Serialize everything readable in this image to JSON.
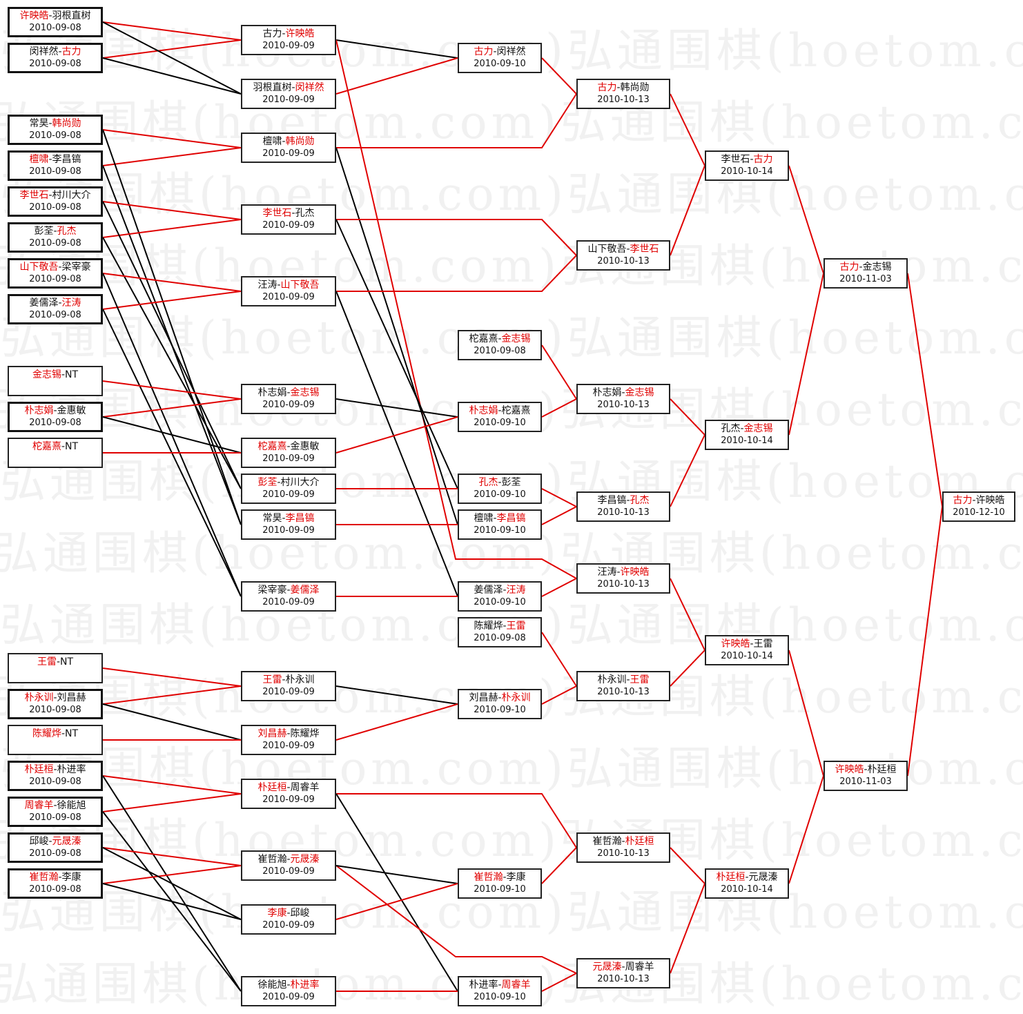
{
  "watermark": "弘通围棋(hoetom.com)弘通围棋(hoetom.com)弘通围棋",
  "colors": {
    "winner": "#e00000",
    "loser": "#000000",
    "border": "#222222"
  },
  "matches": [
    {
      "id": "c1a",
      "players": [
        "许映皓",
        "羽根直树"
      ],
      "winner": 0,
      "date": "2010-09-08"
    },
    {
      "id": "c1b",
      "players": [
        "闵祥然",
        "古力"
      ],
      "winner": 1,
      "date": "2010-09-08"
    },
    {
      "id": "c1c",
      "players": [
        "常昊",
        "韩尚勋"
      ],
      "winner": 1,
      "date": "2010-09-08"
    },
    {
      "id": "c1d",
      "players": [
        "檀啸",
        "李昌镐"
      ],
      "winner": 0,
      "date": "2010-09-08"
    },
    {
      "id": "c1e",
      "players": [
        "李世石",
        "村川大介"
      ],
      "winner": 0,
      "date": "2010-09-08"
    },
    {
      "id": "c1f",
      "players": [
        "彭荃",
        "孔杰"
      ],
      "winner": 1,
      "date": "2010-09-08"
    },
    {
      "id": "c1g",
      "players": [
        "山下敬吾",
        "梁宰豪"
      ],
      "winner": 0,
      "date": "2010-09-08"
    },
    {
      "id": "c1h",
      "players": [
        "姜儒泽",
        "汪涛"
      ],
      "winner": 1,
      "date": "2010-09-08"
    },
    {
      "id": "c1i",
      "players": [
        "金志锡",
        "NT"
      ],
      "winner": 0,
      "date": ""
    },
    {
      "id": "c1j",
      "players": [
        "朴志娟",
        "金惠敏"
      ],
      "winner": 0,
      "date": "2010-09-08"
    },
    {
      "id": "c1k",
      "players": [
        "柁嘉熹",
        "NT"
      ],
      "winner": 0,
      "date": ""
    },
    {
      "id": "c1l",
      "players": [
        "王雷",
        "NT"
      ],
      "winner": 0,
      "date": ""
    },
    {
      "id": "c1m",
      "players": [
        "朴永训",
        "刘昌赫"
      ],
      "winner": 0,
      "date": "2010-09-08"
    },
    {
      "id": "c1n",
      "players": [
        "陈耀烨",
        "NT"
      ],
      "winner": 0,
      "date": ""
    },
    {
      "id": "c1o",
      "players": [
        "朴廷桓",
        "朴进率"
      ],
      "winner": 0,
      "date": "2010-09-08"
    },
    {
      "id": "c1p",
      "players": [
        "周睿羊",
        "徐能旭"
      ],
      "winner": 0,
      "date": "2010-09-08"
    },
    {
      "id": "c1q",
      "players": [
        "邱峻",
        "元晟溱"
      ],
      "winner": 1,
      "date": "2010-09-08"
    },
    {
      "id": "c1r",
      "players": [
        "崔哲瀚",
        "李康"
      ],
      "winner": 0,
      "date": "2010-09-08"
    },
    {
      "id": "c2a",
      "players": [
        "古力",
        "许映皓"
      ],
      "winner": 1,
      "date": "2010-09-09"
    },
    {
      "id": "c2b",
      "players": [
        "羽根直树",
        "闵祥然"
      ],
      "winner": 1,
      "date": "2010-09-09"
    },
    {
      "id": "c2c",
      "players": [
        "檀啸",
        "韩尚勋"
      ],
      "winner": 1,
      "date": "2010-09-09"
    },
    {
      "id": "c2d",
      "players": [
        "李世石",
        "孔杰"
      ],
      "winner": 0,
      "date": "2010-09-09"
    },
    {
      "id": "c2e",
      "players": [
        "汪涛",
        "山下敬吾"
      ],
      "winner": 1,
      "date": "2010-09-09"
    },
    {
      "id": "c2f",
      "players": [
        "朴志娟",
        "金志锡"
      ],
      "winner": 1,
      "date": "2010-09-09"
    },
    {
      "id": "c2g",
      "players": [
        "柁嘉熹",
        "金惠敏"
      ],
      "winner": 0,
      "date": "2010-09-09"
    },
    {
      "id": "c2h",
      "players": [
        "彭荃",
        "村川大介"
      ],
      "winner": 0,
      "date": "2010-09-09"
    },
    {
      "id": "c2i",
      "players": [
        "常昊",
        "李昌镐"
      ],
      "winner": 1,
      "date": "2010-09-09"
    },
    {
      "id": "c2j",
      "players": [
        "梁宰豪",
        "姜儒泽"
      ],
      "winner": 1,
      "date": "2010-09-09"
    },
    {
      "id": "c2k",
      "players": [
        "王雷",
        "朴永训"
      ],
      "winner": 0,
      "date": "2010-09-09"
    },
    {
      "id": "c2l",
      "players": [
        "刘昌赫",
        "陈耀烨"
      ],
      "winner": 0,
      "date": "2010-09-09"
    },
    {
      "id": "c2m",
      "players": [
        "朴廷桓",
        "周睿羊"
      ],
      "winner": 0,
      "date": "2010-09-09"
    },
    {
      "id": "c2n",
      "players": [
        "崔哲瀚",
        "元晟溱"
      ],
      "winner": 1,
      "date": "2010-09-09"
    },
    {
      "id": "c2o",
      "players": [
        "李康",
        "邱峻"
      ],
      "winner": 0,
      "date": "2010-09-09"
    },
    {
      "id": "c2p",
      "players": [
        "徐能旭",
        "朴进率"
      ],
      "winner": 1,
      "date": "2010-09-09"
    },
    {
      "id": "c3a",
      "players": [
        "古力",
        "闵祥然"
      ],
      "winner": 0,
      "date": "2010-09-10"
    },
    {
      "id": "c3b",
      "players": [
        "柁嘉熹",
        "金志锡"
      ],
      "winner": 1,
      "date": "2010-09-08"
    },
    {
      "id": "c3c",
      "players": [
        "朴志娟",
        "柁嘉熹"
      ],
      "winner": 0,
      "date": "2010-09-10"
    },
    {
      "id": "c3d",
      "players": [
        "孔杰",
        "彭荃"
      ],
      "winner": 0,
      "date": "2010-09-10"
    },
    {
      "id": "c3e",
      "players": [
        "檀啸",
        "李昌镐"
      ],
      "winner": 1,
      "date": "2010-09-10"
    },
    {
      "id": "c3f",
      "players": [
        "姜儒泽",
        "汪涛"
      ],
      "winner": 1,
      "date": "2010-09-10"
    },
    {
      "id": "c3g",
      "players": [
        "陈耀烨",
        "王雷"
      ],
      "winner": 1,
      "date": "2010-09-08"
    },
    {
      "id": "c3h",
      "players": [
        "刘昌赫",
        "朴永训"
      ],
      "winner": 1,
      "date": "2010-09-10"
    },
    {
      "id": "c3i",
      "players": [
        "崔哲瀚",
        "李康"
      ],
      "winner": 0,
      "date": "2010-09-10"
    },
    {
      "id": "c3j",
      "players": [
        "朴进率",
        "周睿羊"
      ],
      "winner": 1,
      "date": "2010-09-10"
    },
    {
      "id": "c4a",
      "players": [
        "古力",
        "韩尚勋"
      ],
      "winner": 0,
      "date": "2010-10-13"
    },
    {
      "id": "c4b",
      "players": [
        "山下敬吾",
        "李世石"
      ],
      "winner": 1,
      "date": "2010-10-13"
    },
    {
      "id": "c4c",
      "players": [
        "朴志娟",
        "金志锡"
      ],
      "winner": 1,
      "date": "2010-10-13"
    },
    {
      "id": "c4d",
      "players": [
        "李昌镐",
        "孔杰"
      ],
      "winner": 1,
      "date": "2010-10-13"
    },
    {
      "id": "c4e",
      "players": [
        "汪涛",
        "许映皓"
      ],
      "winner": 1,
      "date": "2010-10-13"
    },
    {
      "id": "c4f",
      "players": [
        "朴永训",
        "王雷"
      ],
      "winner": 1,
      "date": "2010-10-13"
    },
    {
      "id": "c4g",
      "players": [
        "崔哲瀚",
        "朴廷桓"
      ],
      "winner": 1,
      "date": "2010-10-13"
    },
    {
      "id": "c4h",
      "players": [
        "元晟溱",
        "周睿羊"
      ],
      "winner": 0,
      "date": "2010-10-13"
    },
    {
      "id": "c5a",
      "players": [
        "李世石",
        "古力"
      ],
      "winner": 1,
      "date": "2010-10-14"
    },
    {
      "id": "c5b",
      "players": [
        "孔杰",
        "金志锡"
      ],
      "winner": 1,
      "date": "2010-10-14"
    },
    {
      "id": "c5c",
      "players": [
        "许映皓",
        "王雷"
      ],
      "winner": 0,
      "date": "2010-10-14"
    },
    {
      "id": "c5d",
      "players": [
        "朴廷桓",
        "元晟溱"
      ],
      "winner": 0,
      "date": "2010-10-14"
    },
    {
      "id": "c6a",
      "players": [
        "古力",
        "金志锡"
      ],
      "winner": 0,
      "date": "2010-11-03"
    },
    {
      "id": "c6b",
      "players": [
        "许映皓",
        "朴廷桓"
      ],
      "winner": 0,
      "date": "2010-11-03"
    },
    {
      "id": "c7a",
      "players": [
        "古力",
        "许映皓"
      ],
      "winner": 0,
      "date": "2010-12-10"
    }
  ],
  "connections": [
    [
      "c1a",
      "c2a",
      "w"
    ],
    [
      "c1b",
      "c2a",
      "w"
    ],
    [
      "c1a",
      "c2b",
      "l"
    ],
    [
      "c1b",
      "c2b",
      "l"
    ],
    [
      "c1c",
      "c2c",
      "w"
    ],
    [
      "c1d",
      "c2c",
      "w"
    ],
    [
      "c1c",
      "c2i",
      "l"
    ],
    [
      "c1d",
      "c2i",
      "l"
    ],
    [
      "c1e",
      "c2d",
      "w"
    ],
    [
      "c1f",
      "c2d",
      "w"
    ],
    [
      "c1e",
      "c2h",
      "l"
    ],
    [
      "c1f",
      "c2h",
      "l"
    ],
    [
      "c1g",
      "c2e",
      "w"
    ],
    [
      "c1h",
      "c2e",
      "w"
    ],
    [
      "c1g",
      "c2j",
      "l"
    ],
    [
      "c1h",
      "c2j",
      "l"
    ],
    [
      "c1i",
      "c2f",
      "w"
    ],
    [
      "c1j",
      "c2f",
      "w"
    ],
    [
      "c1j",
      "c2g",
      "l"
    ],
    [
      "c1k",
      "c2g",
      "w"
    ],
    [
      "c1l",
      "c2k",
      "w"
    ],
    [
      "c1m",
      "c2k",
      "w"
    ],
    [
      "c1m",
      "c2l",
      "l"
    ],
    [
      "c1n",
      "c2l",
      "w"
    ],
    [
      "c1o",
      "c2m",
      "w"
    ],
    [
      "c1p",
      "c2m",
      "w"
    ],
    [
      "c1o",
      "c2p",
      "l"
    ],
    [
      "c1p",
      "c2p",
      "l"
    ],
    [
      "c1q",
      "c2n",
      "w"
    ],
    [
      "c1r",
      "c2n",
      "w"
    ],
    [
      "c1q",
      "c2o",
      "l"
    ],
    [
      "c1r",
      "c2o",
      "l"
    ],
    [
      "c2a",
      "c3a",
      "l"
    ],
    [
      "c2b",
      "c3a",
      "w"
    ],
    [
      "c2a",
      "c4e",
      "w"
    ],
    [
      "c2c",
      "c4a",
      "w"
    ],
    [
      "c2c",
      "c3e",
      "l"
    ],
    [
      "c2d",
      "c4b",
      "w"
    ],
    [
      "c2d",
      "c3d",
      "l"
    ],
    [
      "c2e",
      "c4b",
      "w"
    ],
    [
      "c2e",
      "c3f",
      "l"
    ],
    [
      "c2f",
      "c3c",
      "l"
    ],
    [
      "c2g",
      "c3c",
      "w"
    ],
    [
      "c2h",
      "c3d",
      "w"
    ],
    [
      "c2i",
      "c3e",
      "w"
    ],
    [
      "c2j",
      "c3f",
      "w"
    ],
    [
      "c2k",
      "c3h",
      "l"
    ],
    [
      "c2l",
      "c3h",
      "w"
    ],
    [
      "c2m",
      "c4g",
      "w"
    ],
    [
      "c2m",
      "c3j",
      "l"
    ],
    [
      "c2n",
      "c4h",
      "w"
    ],
    [
      "c2n",
      "c3i",
      "l"
    ],
    [
      "c2o",
      "c3i",
      "w"
    ],
    [
      "c2p",
      "c3j",
      "w"
    ],
    [
      "c3a",
      "c4a",
      "w"
    ],
    [
      "c3b",
      "c4c",
      "w"
    ],
    [
      "c3c",
      "c4c",
      "w"
    ],
    [
      "c3d",
      "c4d",
      "w"
    ],
    [
      "c3e",
      "c4d",
      "w"
    ],
    [
      "c3f",
      "c4e",
      "w"
    ],
    [
      "c3g",
      "c4f",
      "w"
    ],
    [
      "c3h",
      "c4f",
      "w"
    ],
    [
      "c3i",
      "c4g",
      "w"
    ],
    [
      "c3j",
      "c4h",
      "w"
    ],
    [
      "c4a",
      "c5a",
      "w"
    ],
    [
      "c4b",
      "c5a",
      "w"
    ],
    [
      "c4c",
      "c5b",
      "w"
    ],
    [
      "c4d",
      "c5b",
      "w"
    ],
    [
      "c4e",
      "c5c",
      "w"
    ],
    [
      "c4f",
      "c5c",
      "w"
    ],
    [
      "c4g",
      "c5d",
      "w"
    ],
    [
      "c4h",
      "c5d",
      "w"
    ],
    [
      "c5a",
      "c6a",
      "w"
    ],
    [
      "c5b",
      "c6a",
      "w"
    ],
    [
      "c5c",
      "c6b",
      "w"
    ],
    [
      "c5d",
      "c6b",
      "w"
    ],
    [
      "c6a",
      "c7a",
      "w"
    ],
    [
      "c6b",
      "c7a",
      "w"
    ]
  ]
}
